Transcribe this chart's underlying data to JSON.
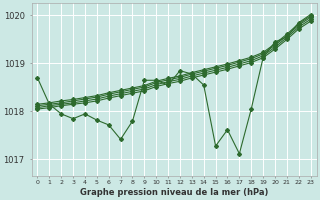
{
  "xlabel": "Graphe pression niveau de la mer (hPa)",
  "bg_color": "#cce8e4",
  "grid_color": "#ffffff",
  "line_color": "#2d6a2d",
  "hours": [
    0,
    1,
    2,
    3,
    4,
    5,
    6,
    7,
    8,
    9,
    10,
    11,
    12,
    13,
    14,
    15,
    16,
    17,
    18,
    19,
    20,
    21,
    22,
    23
  ],
  "ylim": [
    1016.65,
    1020.25
  ],
  "yticks": [
    1017,
    1018,
    1019,
    1020
  ],
  "smooth_lines": [
    [
      1018.05,
      1018.08,
      1018.12,
      1018.15,
      1018.18,
      1018.22,
      1018.28,
      1018.33,
      1018.38,
      1018.43,
      1018.52,
      1018.58,
      1018.63,
      1018.7,
      1018.76,
      1018.82,
      1018.88,
      1018.95,
      1019.02,
      1019.12,
      1019.3,
      1019.5,
      1019.72,
      1019.88
    ],
    [
      1018.08,
      1018.12,
      1018.15,
      1018.18,
      1018.22,
      1018.26,
      1018.32,
      1018.37,
      1018.42,
      1018.47,
      1018.56,
      1018.62,
      1018.67,
      1018.74,
      1018.8,
      1018.86,
      1018.92,
      1018.99,
      1019.06,
      1019.16,
      1019.34,
      1019.54,
      1019.76,
      1019.92
    ],
    [
      1018.12,
      1018.15,
      1018.18,
      1018.22,
      1018.26,
      1018.3,
      1018.36,
      1018.41,
      1018.46,
      1018.51,
      1018.6,
      1018.66,
      1018.71,
      1018.78,
      1018.84,
      1018.9,
      1018.96,
      1019.03,
      1019.1,
      1019.2,
      1019.38,
      1019.58,
      1019.8,
      1019.96
    ],
    [
      1018.15,
      1018.18,
      1018.22,
      1018.25,
      1018.29,
      1018.33,
      1018.39,
      1018.44,
      1018.49,
      1018.54,
      1018.63,
      1018.69,
      1018.74,
      1018.81,
      1018.87,
      1018.93,
      1018.99,
      1019.06,
      1019.13,
      1019.23,
      1019.41,
      1019.61,
      1019.83,
      1019.99
    ]
  ],
  "actual_line": [
    1018.7,
    1018.15,
    1017.95,
    1017.85,
    1017.95,
    1017.82,
    1017.72,
    1017.42,
    1017.8,
    1018.65,
    1018.65,
    1018.55,
    1018.85,
    1018.78,
    1018.55,
    1017.28,
    1017.62,
    1017.12,
    1018.05,
    1019.12,
    1019.45,
    1019.55,
    1019.85,
    1020.02
  ],
  "marker": "D",
  "marker_size": 2.0,
  "linewidth": 0.8
}
